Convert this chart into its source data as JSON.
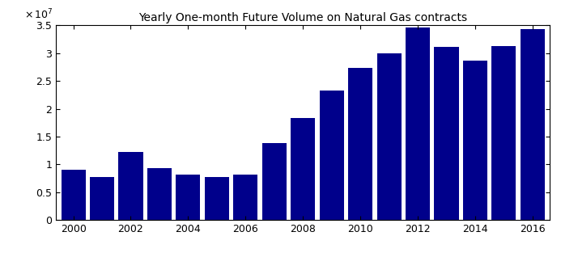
{
  "title": "Yearly One-month Future Volume on Natural Gas contracts",
  "years": [
    2000,
    2001,
    2002,
    2003,
    2004,
    2005,
    2006,
    2007,
    2008,
    2009,
    2010,
    2011,
    2012,
    2013,
    2014,
    2015,
    2016
  ],
  "values": [
    9000000.0,
    7800000.0,
    12300000.0,
    9400000.0,
    8200000.0,
    7800000.0,
    8200000.0,
    13900000.0,
    18400000.0,
    23300000.0,
    27300000.0,
    30000000.0,
    34600000.0,
    31100000.0,
    28600000.0,
    31200000.0,
    34300000.0
  ],
  "bar_color": "#00008B",
  "ylim": [
    0,
    35000000.0
  ],
  "yticks": [
    0,
    5000000.0,
    10000000.0,
    15000000.0,
    20000000.0,
    25000000.0,
    30000000.0,
    35000000.0
  ],
  "ytick_labels": [
    "0",
    "0.5",
    "1",
    "1.5",
    "2",
    "2.5",
    "3",
    "3.5"
  ],
  "xticks": [
    2000,
    2002,
    2004,
    2006,
    2008,
    2010,
    2012,
    2014,
    2016
  ],
  "background_color": "#ffffff",
  "title_fontsize": 10,
  "tick_fontsize": 9,
  "bar_width": 0.85
}
